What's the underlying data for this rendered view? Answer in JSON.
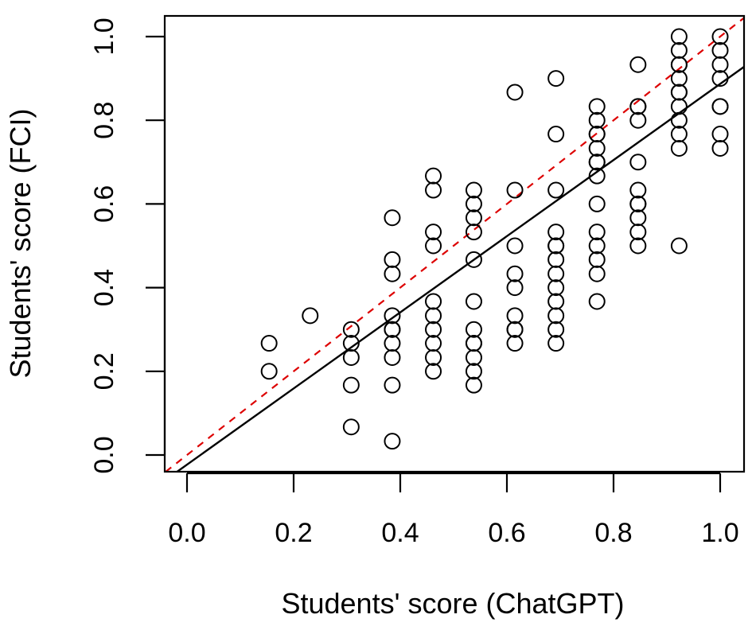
{
  "chart_data": {
    "type": "scatter",
    "xlabel": "Students' score (ChatGPT)",
    "ylabel": "Students' score (FCI)",
    "xlim": [
      0.0,
      1.0
    ],
    "ylim": [
      0.0,
      1.0
    ],
    "x_ticks": [
      "0.0",
      "0.2",
      "0.4",
      "0.6",
      "0.8",
      "1.0"
    ],
    "y_ticks": [
      "0.0",
      "0.2",
      "0.4",
      "0.6",
      "0.8",
      "1.0"
    ],
    "grid": false,
    "legend": "none",
    "points": {
      "x": [
        0.154,
        0.154,
        0.231,
        0.308,
        0.308,
        0.308,
        0.308,
        0.308,
        0.385,
        0.385,
        0.385,
        0.385,
        0.385,
        0.385,
        0.385,
        0.385,
        0.385,
        0.385,
        0.462,
        0.462,
        0.462,
        0.462,
        0.462,
        0.462,
        0.462,
        0.462,
        0.462,
        0.462,
        0.538,
        0.538,
        0.538,
        0.538,
        0.538,
        0.538,
        0.538,
        0.538,
        0.538,
        0.538,
        0.538,
        0.538,
        0.615,
        0.615,
        0.615,
        0.615,
        0.615,
        0.615,
        0.615,
        0.615,
        0.615,
        0.692,
        0.692,
        0.692,
        0.692,
        0.692,
        0.692,
        0.692,
        0.692,
        0.692,
        0.692,
        0.692,
        0.692,
        0.692,
        0.769,
        0.769,
        0.769,
        0.769,
        0.769,
        0.769,
        0.769,
        0.769,
        0.769,
        0.769,
        0.769,
        0.769,
        0.769,
        0.769,
        0.846,
        0.846,
        0.846,
        0.846,
        0.846,
        0.846,
        0.846,
        0.846,
        0.846,
        0.846,
        0.846,
        0.923,
        0.923,
        0.923,
        0.923,
        0.923,
        0.923,
        0.923,
        0.923,
        0.923,
        0.923,
        0.923,
        0.923,
        1.0,
        1.0,
        1.0,
        1.0,
        1.0,
        1.0,
        1.0,
        1.0
      ],
      "y": [
        0.267,
        0.2,
        0.333,
        0.3,
        0.267,
        0.233,
        0.167,
        0.067,
        0.567,
        0.467,
        0.433,
        0.333,
        0.3,
        0.267,
        0.233,
        0.167,
        0.033,
        0.3,
        0.667,
        0.633,
        0.533,
        0.5,
        0.367,
        0.333,
        0.3,
        0.267,
        0.233,
        0.2,
        0.633,
        0.6,
        0.567,
        0.533,
        0.467,
        0.367,
        0.3,
        0.267,
        0.233,
        0.2,
        0.167,
        0.267,
        0.867,
        0.633,
        0.5,
        0.433,
        0.4,
        0.333,
        0.3,
        0.267,
        0.3,
        0.9,
        0.767,
        0.633,
        0.533,
        0.5,
        0.467,
        0.433,
        0.4,
        0.367,
        0.333,
        0.3,
        0.267,
        0.5,
        0.833,
        0.8,
        0.767,
        0.733,
        0.7,
        0.667,
        0.6,
        0.533,
        0.5,
        0.467,
        0.433,
        0.367,
        0.767,
        0.7,
        0.933,
        0.833,
        0.8,
        0.7,
        0.633,
        0.6,
        0.567,
        0.533,
        0.5,
        0.6,
        0.833,
        1.0,
        0.967,
        0.933,
        0.9,
        0.867,
        0.833,
        0.8,
        0.767,
        0.733,
        0.5,
        0.867,
        0.933,
        1.0,
        0.967,
        0.933,
        0.9,
        0.833,
        0.767,
        0.733,
        0.833
      ]
    },
    "fit_line": {
      "intercept": -0.023,
      "slope": 0.91,
      "color": "#000000",
      "style": "solid"
    },
    "identity_line": {
      "intercept": 0.0,
      "slope": 1.0,
      "color": "#dd0000",
      "style": "dashed"
    },
    "marker": {
      "shape": "open-circle",
      "color": "#000000"
    }
  }
}
